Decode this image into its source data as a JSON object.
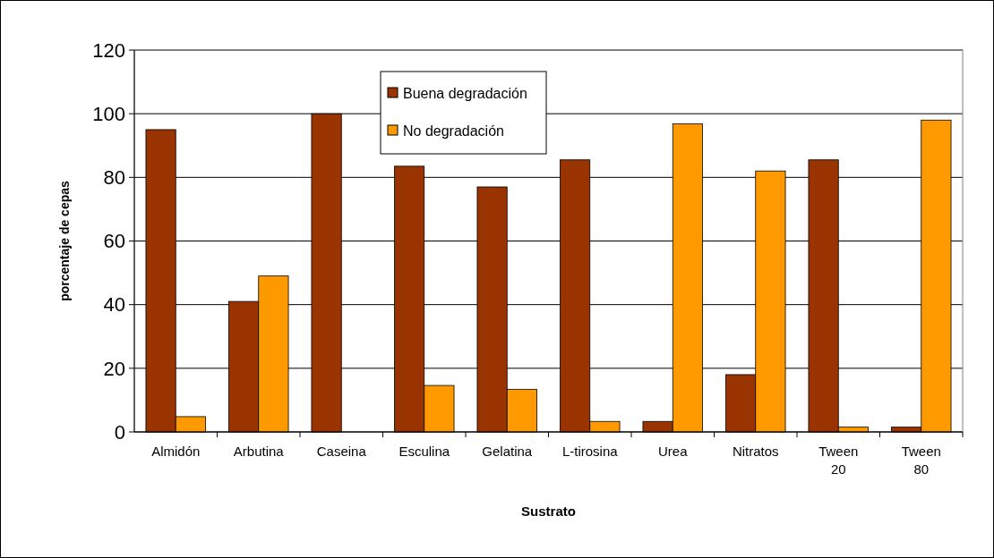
{
  "chart_data": {
    "type": "bar",
    "xlabel": "Sustrato",
    "ylabel": "porcentaje de cepas",
    "categories": [
      "Almidón",
      "Arbutina",
      "Caseina",
      "Esculina",
      "Gelatina",
      "L-tirosina",
      "Urea",
      "Nitratos",
      "Tween 20",
      "Tween 80"
    ],
    "series": [
      {
        "name": "Buena degradación",
        "color": "#993300",
        "values": [
          95,
          41,
          100,
          83.5,
          77,
          85.5,
          3.3,
          18,
          85.5,
          1.5
        ]
      },
      {
        "name": "No degradación",
        "color": "#ff9900",
        "values": [
          4.8,
          49,
          0,
          14.6,
          13.4,
          3.3,
          96.8,
          82,
          1.5,
          98
        ]
      }
    ],
    "ylim": [
      0,
      120
    ],
    "yticks": [
      0,
      20,
      40,
      60,
      80,
      100,
      120
    ],
    "grid": "y",
    "legend": "top"
  }
}
